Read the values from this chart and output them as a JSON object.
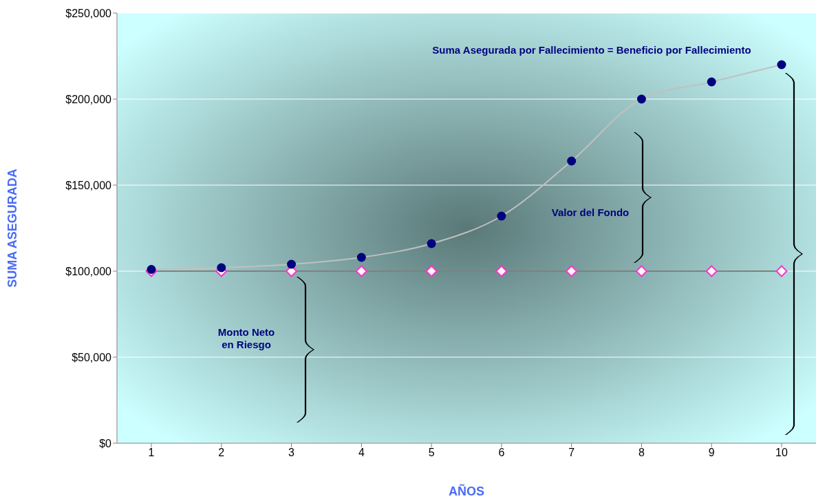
{
  "chart_data": {
    "type": "line",
    "xlabel": "AÑOS",
    "ylabel": "SUMA ASEGURADA",
    "categories": [
      "1",
      "2",
      "3",
      "4",
      "5",
      "6",
      "7",
      "8",
      "9",
      "10"
    ],
    "series": [
      {
        "color": "#000080",
        "marker": "circle",
        "values": [
          101000,
          102000,
          104000,
          108000,
          116000,
          132000,
          164000,
          200000,
          210000,
          220000
        ]
      },
      {
        "color": "#ff33cc",
        "marker": "diamond",
        "values": [
          100000,
          100000,
          100000,
          100000,
          100000,
          100000,
          100000,
          100000,
          100000,
          100000
        ]
      }
    ],
    "ylim": [
      0,
      250000
    ],
    "yticks": [
      {
        "value": 0,
        "label": "$0"
      },
      {
        "value": 50000,
        "label": "$50,000"
      },
      {
        "value": 100000,
        "label": "$100,000"
      },
      {
        "value": 150000,
        "label": "$150,000"
      },
      {
        "value": 200000,
        "label": "$200,000"
      },
      {
        "value": 250000,
        "label": "$250,000"
      }
    ],
    "grid": "y",
    "legend": false,
    "line_style": "solid",
    "annotations": [
      "Suma Asegurada por Fallecimiento = Beneficio por Fallecimiento",
      "Valor del Fondo",
      "Monto Neto\nen Riesgo"
    ]
  }
}
